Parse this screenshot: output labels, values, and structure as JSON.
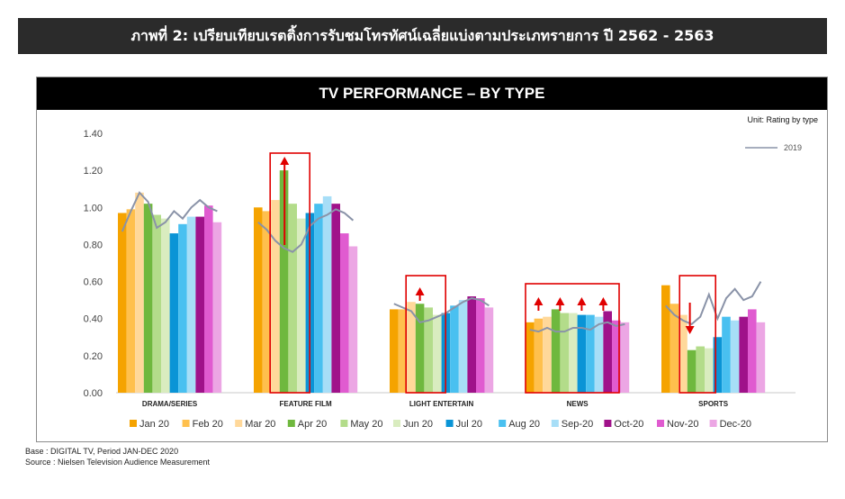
{
  "banner": {
    "title": "ภาพที่ 2: เปรียบเทียบเรตติ้งการรับชมโทรทัศน์เฉลี่ยแบ่งตามประเภทรายการ ปี 2562 - 2563"
  },
  "footer": {
    "base": "Base : DIGITAL TV, Period JAN-DEC 2020",
    "source": "Source : Nielsen Television Audience Measurement"
  },
  "chart_data": {
    "type": "bar",
    "title": "TV PERFORMANCE – BY TYPE",
    "unit_label": "Unit: Rating by type",
    "ylim": [
      0,
      1.4
    ],
    "yticks": [
      "0.00",
      "0.20",
      "0.40",
      "0.60",
      "0.80",
      "1.00",
      "1.20",
      "1.40"
    ],
    "grid": false,
    "legend_position": "bottom",
    "categories": [
      "DRAMA/SERIES",
      "FEATURE FILM",
      "LIGHT ENTERTAIN",
      "NEWS",
      "SPORTS"
    ],
    "series": [
      {
        "name": "Jan 20",
        "color": "#f5a300",
        "values": [
          0.97,
          1.0,
          0.45,
          0.38,
          0.58
        ]
      },
      {
        "name": "Feb 20",
        "color": "#ffc04d",
        "values": [
          0.99,
          0.98,
          0.45,
          0.4,
          0.48
        ]
      },
      {
        "name": "Mar 20",
        "color": "#ffd89a",
        "values": [
          1.08,
          1.04,
          0.49,
          0.41,
          0.42
        ]
      },
      {
        "name": "Apr 20",
        "color": "#6fb83e",
        "values": [
          1.02,
          1.2,
          0.48,
          0.45,
          0.23
        ]
      },
      {
        "name": "May 20",
        "color": "#b3dc8a",
        "values": [
          0.96,
          1.02,
          0.46,
          0.43,
          0.25
        ]
      },
      {
        "name": "Jun 20",
        "color": "#d9ecbf",
        "values": [
          0.94,
          0.94,
          0.42,
          0.43,
          0.24
        ]
      },
      {
        "name": "Jul 20",
        "color": "#0a94d6",
        "values": [
          0.86,
          0.97,
          0.43,
          0.42,
          0.3
        ]
      },
      {
        "name": "Aug 20",
        "color": "#49c0f0",
        "values": [
          0.91,
          1.02,
          0.47,
          0.42,
          0.41
        ]
      },
      {
        "name": "Sep-20",
        "color": "#a7def7",
        "values": [
          0.95,
          1.06,
          0.5,
          0.41,
          0.39
        ]
      },
      {
        "name": "Oct-20",
        "color": "#a0128a",
        "values": [
          0.95,
          1.02,
          0.52,
          0.44,
          0.41
        ]
      },
      {
        "name": "Nov-20",
        "color": "#e05bd0",
        "values": [
          1.01,
          0.86,
          0.51,
          0.39,
          0.45
        ]
      },
      {
        "name": "Dec-20",
        "color": "#eca6e4",
        "values": [
          0.92,
          0.79,
          0.46,
          0.38,
          0.38
        ]
      }
    ],
    "line_2019": {
      "name": "2019",
      "color": "#8a93a8",
      "values": [
        [
          0.87,
          0.98,
          1.08,
          1.03,
          0.89,
          0.92,
          0.98,
          0.94,
          1.0,
          1.04,
          1.0,
          0.98
        ],
        [
          0.92,
          0.88,
          0.82,
          0.78,
          0.76,
          0.8,
          0.9,
          0.94,
          0.96,
          0.99,
          0.97,
          0.93
        ],
        [
          0.48,
          0.46,
          0.44,
          0.38,
          0.39,
          0.41,
          0.43,
          0.46,
          0.49,
          0.51,
          0.5,
          0.47
        ],
        [
          0.34,
          0.33,
          0.35,
          0.33,
          0.33,
          0.35,
          0.35,
          0.34,
          0.37,
          0.38,
          0.36,
          0.37
        ],
        [
          0.47,
          0.42,
          0.39,
          0.37,
          0.41,
          0.53,
          0.4,
          0.51,
          0.56,
          0.5,
          0.52,
          0.6
        ]
      ]
    },
    "highlights": [
      {
        "category": "FEATURE FILM",
        "direction": "up"
      },
      {
        "category": "LIGHT ENTERTAIN",
        "direction": "up"
      },
      {
        "category": "NEWS",
        "direction": "up",
        "arrows": 4
      },
      {
        "category": "SPORTS",
        "direction": "down"
      }
    ]
  }
}
